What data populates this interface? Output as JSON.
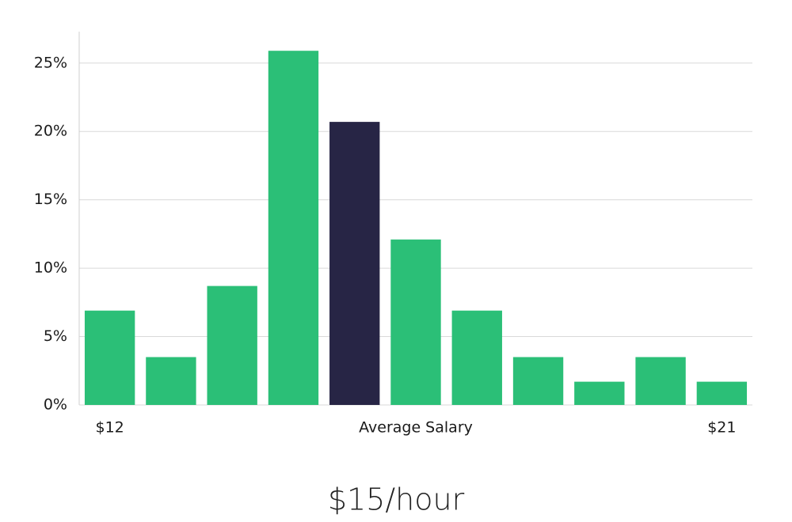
{
  "chart_data": {
    "type": "bar",
    "categories": [
      "$12",
      null,
      null,
      null,
      null,
      "Average Salary",
      null,
      null,
      null,
      null,
      "$21"
    ],
    "values": [
      6.9,
      3.5,
      8.7,
      25.9,
      20.7,
      12.1,
      6.9,
      3.5,
      1.7,
      3.5,
      1.7
    ],
    "colors": [
      "#2bbf77",
      "#2bbf77",
      "#2bbf77",
      "#2bbf77",
      "#272545",
      "#2bbf77",
      "#2bbf77",
      "#2bbf77",
      "#2bbf77",
      "#2bbf77",
      "#2bbf77"
    ],
    "ylim": [
      0,
      27.3
    ],
    "yticks": [
      {
        "value": 0,
        "label": "0%"
      },
      {
        "value": 5,
        "label": "5%"
      },
      {
        "value": 10,
        "label": "10%"
      },
      {
        "value": 15,
        "label": "15%"
      },
      {
        "value": 20,
        "label": "20%"
      },
      {
        "value": 25,
        "label": "25%"
      }
    ],
    "grid": true,
    "annotation": "$15/hour"
  }
}
